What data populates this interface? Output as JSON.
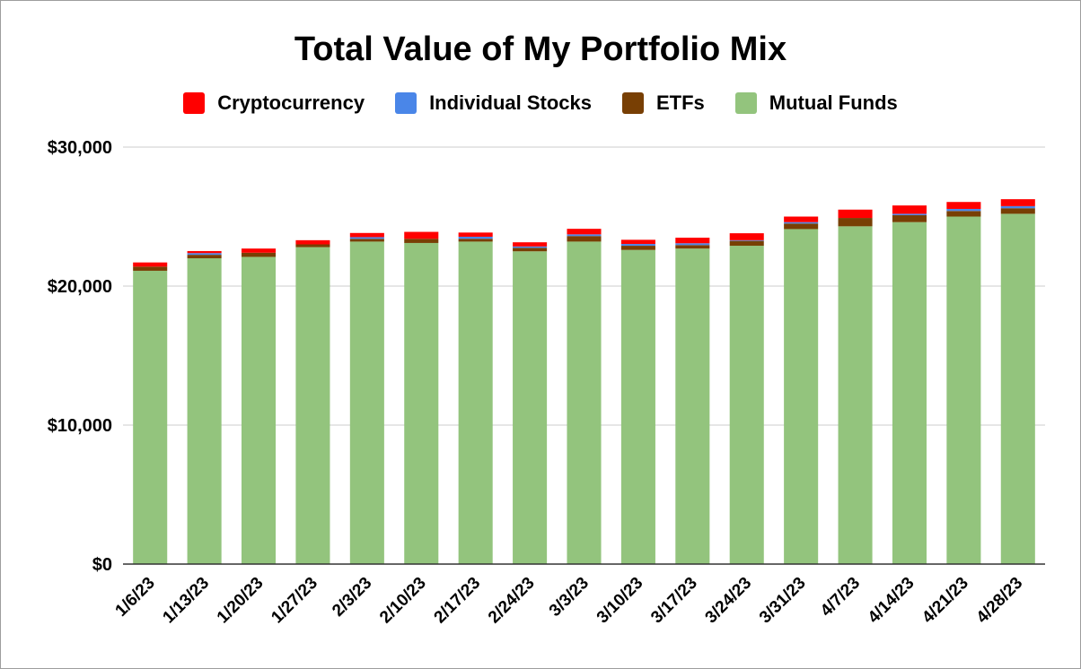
{
  "chart_data": {
    "type": "bar",
    "stacked": true,
    "title": "Total Value of My Portfolio Mix",
    "xlabel": "",
    "ylabel": "",
    "ylim": [
      0,
      30000
    ],
    "yticks": [
      0,
      10000,
      20000,
      30000
    ],
    "ytick_labels": [
      "$0",
      "$10,000",
      "$20,000",
      "$30,000"
    ],
    "grid": true,
    "legend_position": "top",
    "categories": [
      "1/6/23",
      "1/13/23",
      "1/20/23",
      "1/27/23",
      "2/3/23",
      "2/10/23",
      "2/17/23",
      "2/24/23",
      "3/3/23",
      "3/10/23",
      "3/17/23",
      "3/24/23",
      "3/31/23",
      "4/7/23",
      "4/14/23",
      "4/21/23",
      "4/28/23"
    ],
    "series": [
      {
        "name": "Mutual Funds",
        "color": "#93c47d",
        "values": [
          21100,
          22000,
          22100,
          22800,
          23200,
          23100,
          23200,
          22500,
          23200,
          22600,
          22700,
          22900,
          24100,
          24300,
          24600,
          25000,
          25200
        ]
      },
      {
        "name": "ETFs",
        "color": "#783f04",
        "values": [
          300,
          250,
          300,
          200,
          200,
          300,
          200,
          250,
          400,
          300,
          250,
          350,
          400,
          600,
          500,
          400,
          400
        ]
      },
      {
        "name": "Individual Stocks",
        "color": "#4a86e8",
        "values": [
          0,
          120,
          0,
          0,
          120,
          0,
          150,
          100,
          120,
          130,
          130,
          50,
          100,
          0,
          100,
          150,
          150
        ]
      },
      {
        "name": "Cryptocurrency",
        "color": "#ff0000",
        "values": [
          300,
          150,
          300,
          300,
          300,
          500,
          300,
          300,
          400,
          300,
          400,
          500,
          400,
          600,
          600,
          500,
          500
        ]
      }
    ],
    "legend_order": [
      "Cryptocurrency",
      "Individual Stocks",
      "ETFs",
      "Mutual Funds"
    ]
  }
}
